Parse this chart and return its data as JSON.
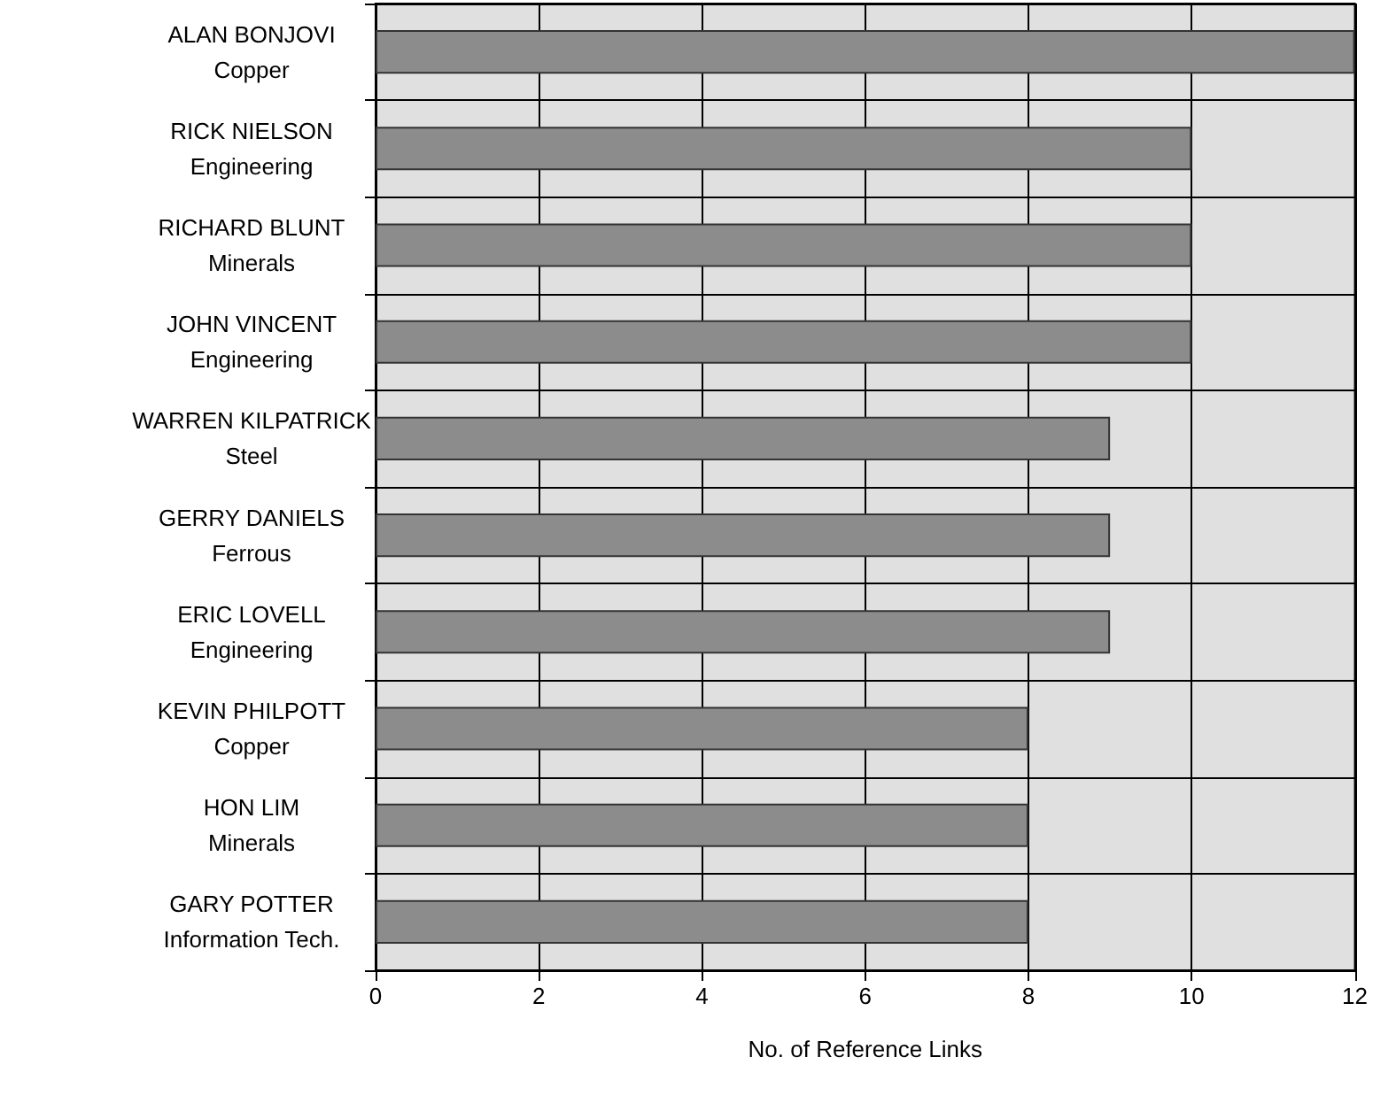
{
  "chart_data": {
    "type": "bar",
    "orientation": "horizontal",
    "xlabel": "No. of Reference Links",
    "categories": [
      "ALAN BONJOVI\nCopper",
      "RICK NIELSON\nEngineering",
      "RICHARD BLUNT\nMinerals",
      "JOHN VINCENT\nEngineering",
      "WARREN KILPATRICK\nSteel",
      "GERRY DANIELS\nFerrous",
      "ERIC LOVELL\nEngineering",
      "KEVIN PHILPOTT\nCopper",
      "HON LIM\nMinerals",
      "GARY POTTER\nInformation Tech."
    ],
    "values": [
      12,
      10,
      10,
      10,
      9,
      9,
      9,
      8,
      8,
      8
    ],
    "color": "#8c8c8c",
    "xlim": [
      0,
      12
    ],
    "xticks": [
      0,
      2,
      4,
      6,
      8,
      10,
      12
    ],
    "grid": true
  }
}
